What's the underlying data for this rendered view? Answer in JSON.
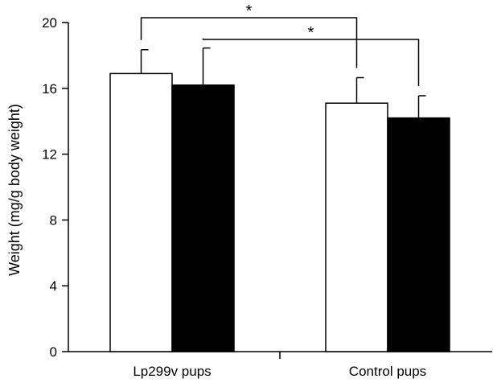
{
  "chart_data": {
    "type": "bar",
    "title": "",
    "xlabel": "",
    "ylabel": "Weight (mg/g body weight)",
    "ylim": [
      0,
      20
    ],
    "yticks": [
      0,
      4,
      8,
      12,
      16,
      20
    ],
    "categories": [
      "Lp299v pups",
      "Control pups"
    ],
    "series": [
      {
        "fill": "#ffffff",
        "values": [
          16.9,
          15.1
        ],
        "errors": [
          1.45,
          1.55
        ]
      },
      {
        "fill": "#000000",
        "values": [
          16.2,
          14.2
        ],
        "errors": [
          2.25,
          1.35
        ]
      }
    ],
    "significance": [
      {
        "from": [
          0,
          0
        ],
        "to": [
          1,
          0
        ],
        "label": "*"
      },
      {
        "from": [
          0,
          1
        ],
        "to": [
          1,
          1
        ],
        "label": "*"
      }
    ],
    "legend": "none",
    "grid": false
  }
}
